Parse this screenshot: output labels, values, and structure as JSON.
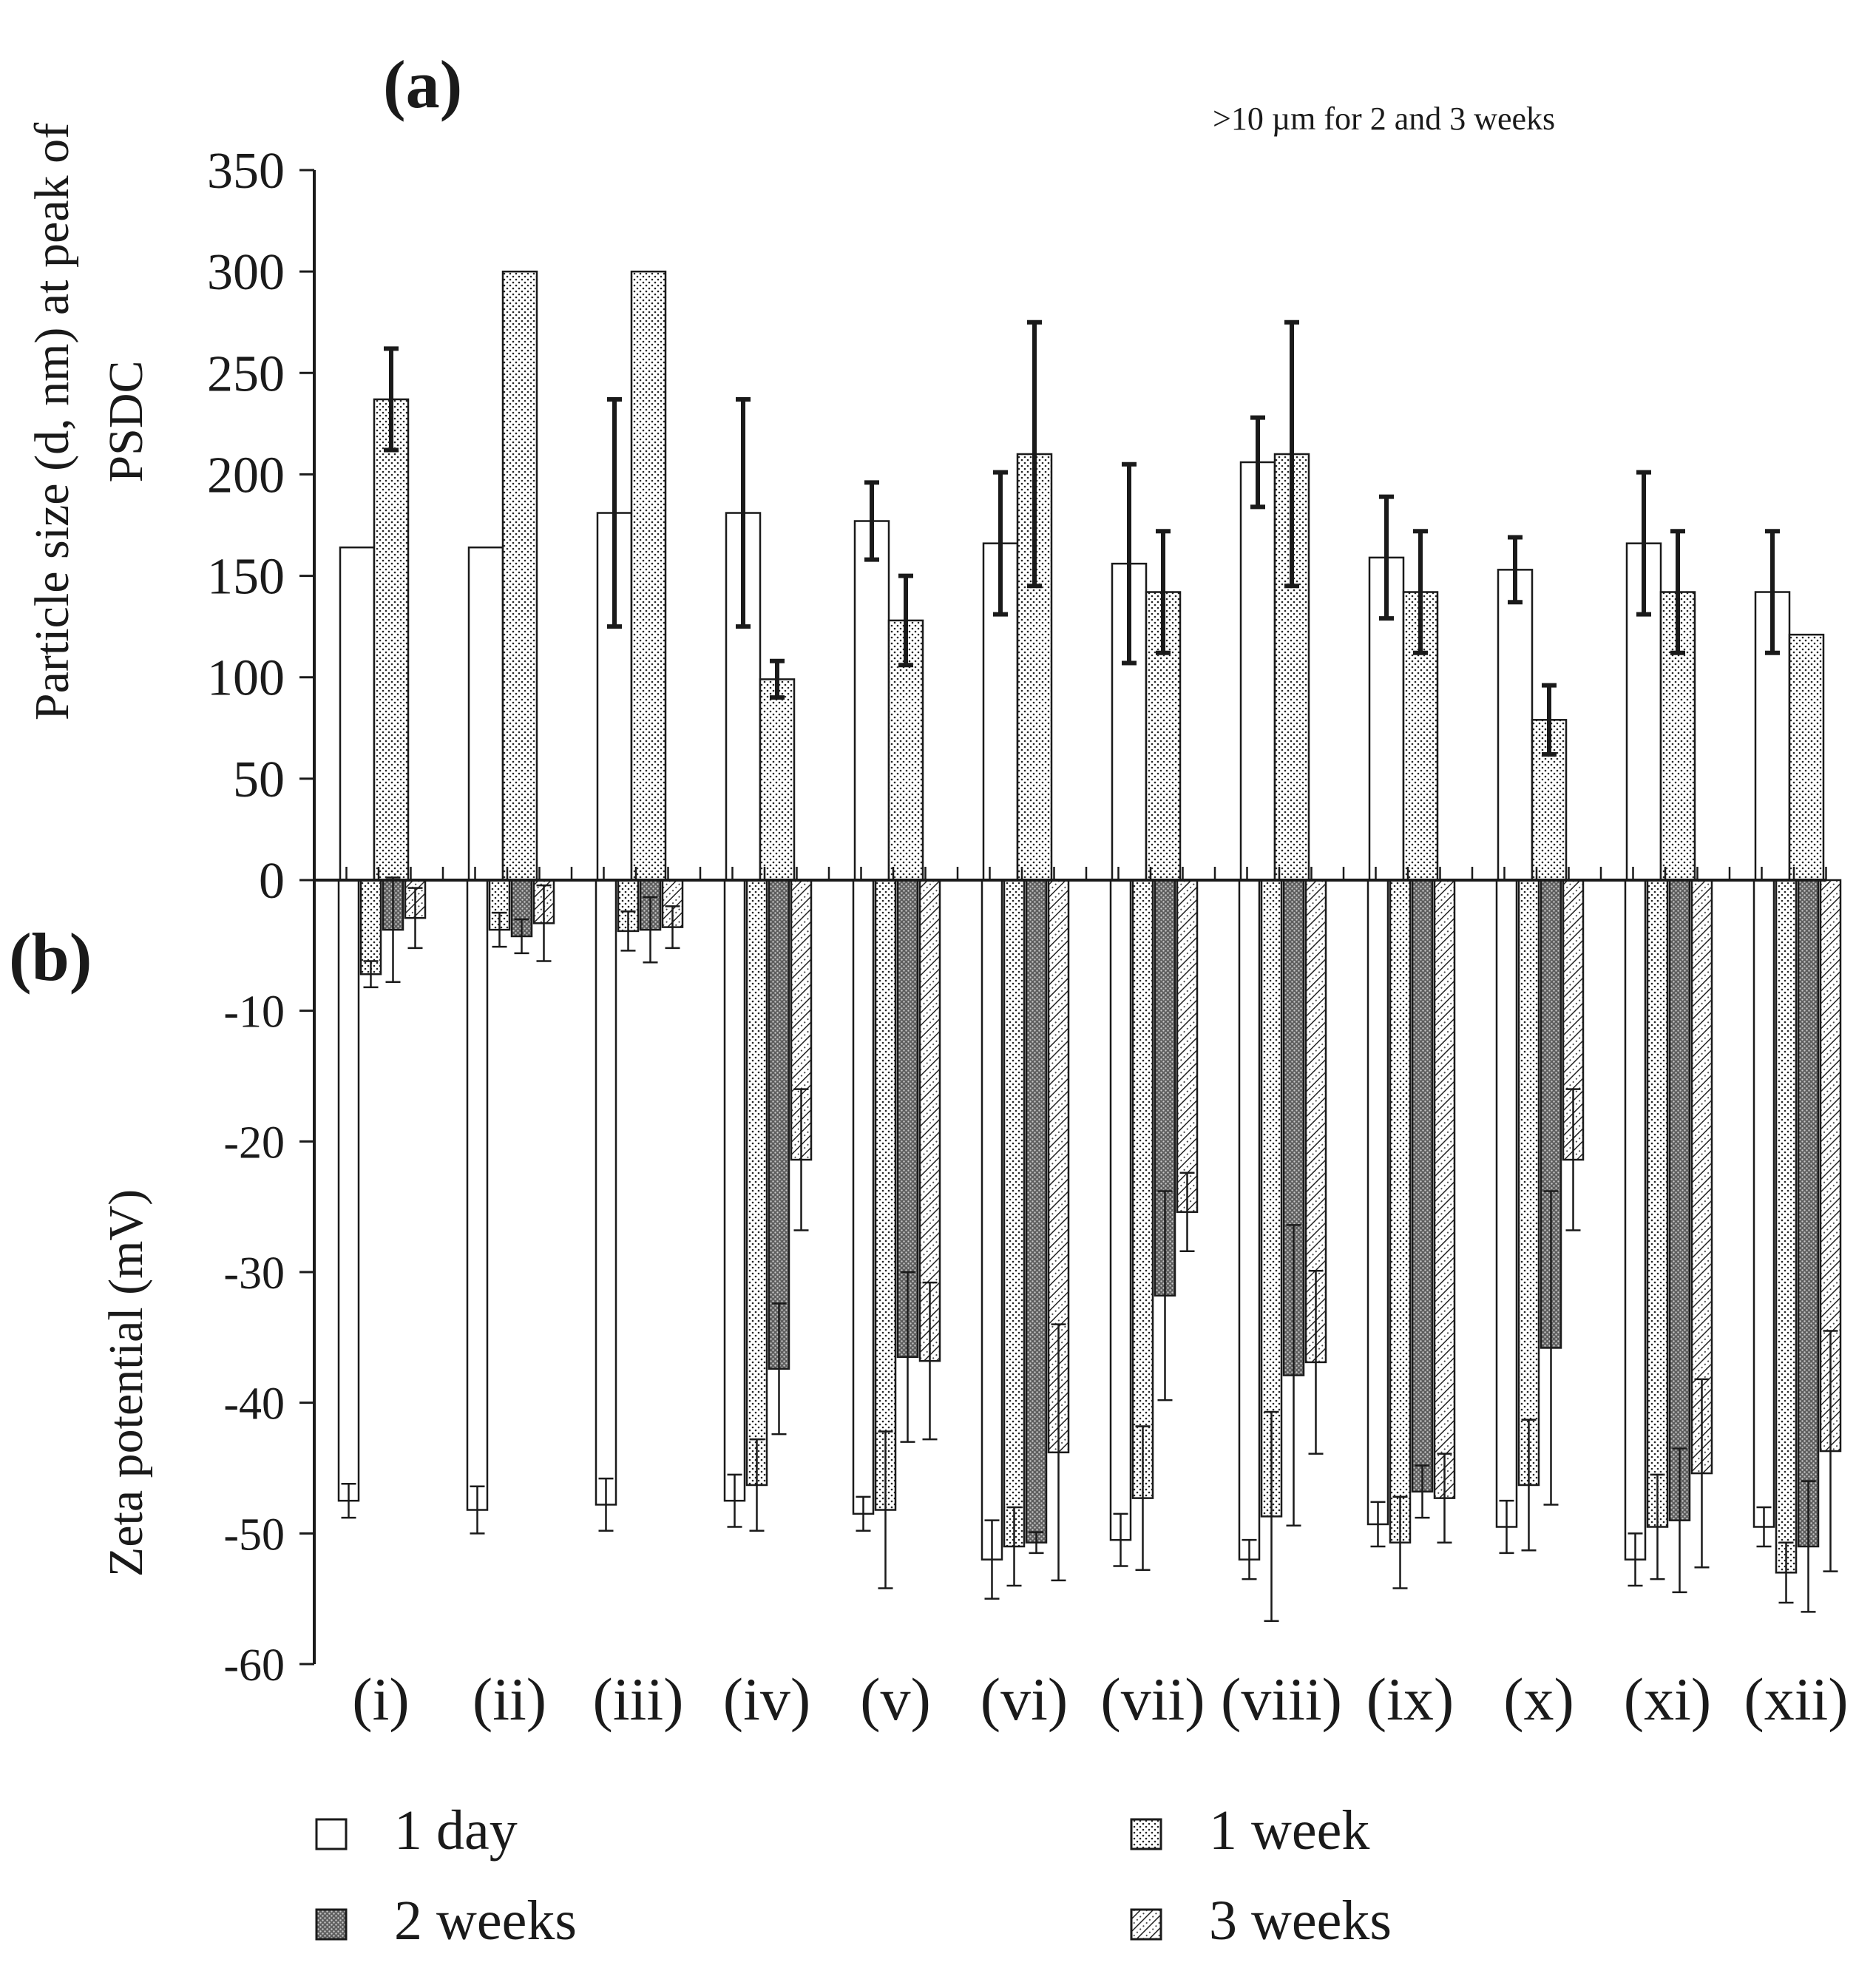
{
  "chart_data": [
    {
      "panel": "(a)",
      "type": "bar",
      "ylabel": [
        "Particle size (d, nm) at peak of",
        "PSDC"
      ],
      "ylim": [
        0,
        350
      ],
      "yticks": [
        0,
        50,
        100,
        150,
        200,
        250,
        300,
        350
      ],
      "annotation": ">10 µm for 2 and 3 weeks",
      "categories": [
        "(i)",
        "(ii)",
        "(iii)",
        "(iv)",
        "(v)",
        "(vi)",
        "(vii)",
        "(viii)",
        "(ix)",
        "(x)",
        "(xi)",
        "(xii)"
      ],
      "series": [
        {
          "name": "1 day",
          "pattern": "empty",
          "values": [
            164,
            164,
            181,
            181,
            177,
            166,
            156,
            206,
            159,
            153,
            166,
            142
          ],
          "errors": [
            0,
            0,
            56,
            56,
            19,
            35,
            49,
            22,
            30,
            16,
            35,
            30
          ]
        },
        {
          "name": "1 week",
          "pattern": "dots",
          "values": [
            237,
            300,
            300,
            99,
            128,
            210,
            142,
            210,
            142,
            79,
            142,
            121
          ],
          "errors": [
            25,
            0,
            0,
            9,
            22,
            65,
            30,
            65,
            30,
            17,
            30,
            0
          ]
        }
      ]
    },
    {
      "panel": "(b)",
      "type": "bar",
      "ylabel": "Zeta potential (mV)",
      "ylim": [
        -60,
        0
      ],
      "yticks": [
        0,
        -10,
        -20,
        -30,
        -40,
        -50,
        -60
      ],
      "categories": [
        "(i)",
        "(ii)",
        "(iii)",
        "(iv)",
        "(v)",
        "(vi)",
        "(vii)",
        "(viii)",
        "(ix)",
        "(x)",
        "(xi)",
        "(xii)"
      ],
      "series": [
        {
          "name": "1 day",
          "pattern": "empty",
          "values": [
            -47.5,
            -48.2,
            -47.8,
            -47.5,
            -48.5,
            -52,
            -50.5,
            -52,
            -49.3,
            -49.5,
            -52,
            -49.5
          ],
          "errors": [
            1.3,
            1.8,
            2.0,
            2.0,
            1.3,
            3.0,
            2.0,
            1.5,
            1.7,
            2.0,
            2.0,
            1.5
          ]
        },
        {
          "name": "1 week",
          "pattern": "dots",
          "values": [
            -7.2,
            -3.8,
            -3.9,
            -46.3,
            -48.2,
            -51,
            -47.3,
            -48.7,
            -50.7,
            -46.3,
            -49.5,
            -53
          ],
          "errors": [
            1.0,
            1.3,
            1.5,
            3.5,
            6.0,
            3.0,
            5.5,
            8.0,
            3.5,
            5.0,
            4.0,
            2.3
          ]
        },
        {
          "name": "2 weeks",
          "pattern": "dark",
          "values": [
            -3.8,
            -4.3,
            -3.8,
            -37.4,
            -36.5,
            -50.7,
            -31.8,
            -37.9,
            -46.8,
            -35.8,
            -49,
            -51
          ],
          "errors": [
            4.0,
            1.3,
            2.5,
            5.0,
            6.5,
            0.8,
            8.0,
            11.5,
            2.0,
            12.0,
            5.5,
            5.0
          ]
        },
        {
          "name": "3 weeks",
          "pattern": "hatch",
          "values": [
            -2.9,
            -3.3,
            -3.6,
            -21.4,
            -36.8,
            -43.8,
            -25.4,
            -36.9,
            -47.3,
            -21.4,
            -45.4,
            -43.7
          ],
          "errors": [
            2.3,
            2.9,
            1.6,
            5.4,
            6.0,
            9.8,
            3.0,
            7.0,
            3.4,
            5.4,
            7.2,
            9.2
          ]
        }
      ]
    }
  ],
  "legend": [
    {
      "name": "1 day",
      "pattern": "empty"
    },
    {
      "name": "1 week",
      "pattern": "dots"
    },
    {
      "name": "2 weeks",
      "pattern": "dark"
    },
    {
      "name": "3 weeks",
      "pattern": "hatch"
    }
  ]
}
